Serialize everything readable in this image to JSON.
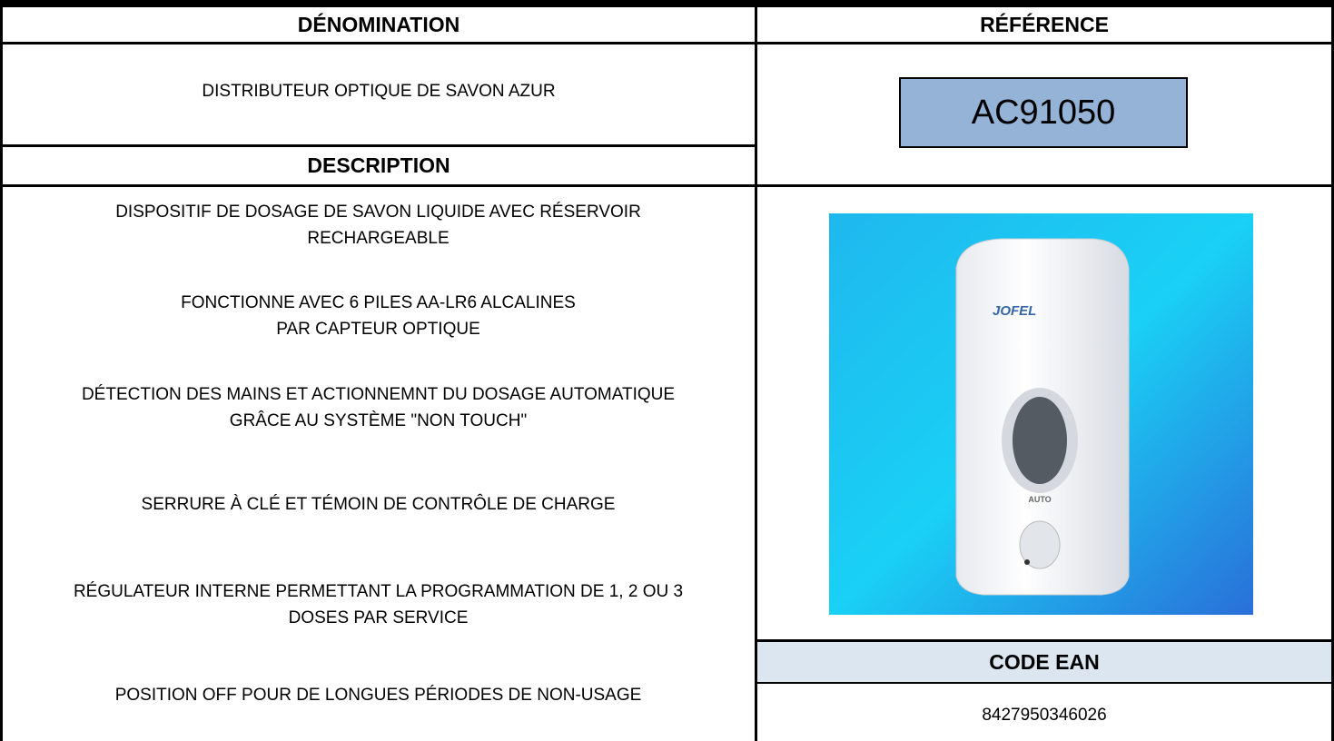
{
  "header": {
    "name_title": "DÉNOMINATION",
    "reference_title": "RÉFÉRENCE"
  },
  "product": {
    "name": "DISTRIBUTEUR OPTIQUE DE SAVON AZUR",
    "reference": "AC91050"
  },
  "description": {
    "title": "DESCRIPTION",
    "items": [
      [
        "DISPOSITIF DE DOSAGE DE SAVON LIQUIDE AVEC RÉSERVOIR",
        "RECHARGEABLE"
      ],
      [
        "FONCTIONNE AVEC 6 PILES AA-LR6 ALCALINES",
        "PAR CAPTEUR OPTIQUE"
      ],
      [
        "DÉTECTION DES MAINS ET ACTIONNEMNT DU DOSAGE AUTOMATIQUE",
        "GRÂCE AU SYSTÈME \"NON TOUCH\""
      ],
      [
        "SERRURE À CLÉ ET TÉMOIN DE CONTRÔLE DE CHARGE"
      ],
      [
        "RÉGULATEUR INTERNE PERMETTANT LA PROGRAMMATION DE 1, 2 OU 3",
        "DOSES PAR SERVICE"
      ],
      [
        "POSITION OFF POUR DE LONGUES PÉRIODES DE NON-USAGE"
      ]
    ]
  },
  "image": {
    "brand": "JOFEL",
    "label": "AUTO"
  },
  "ean": {
    "title": "CODE EAN",
    "code": "8427950346026"
  }
}
